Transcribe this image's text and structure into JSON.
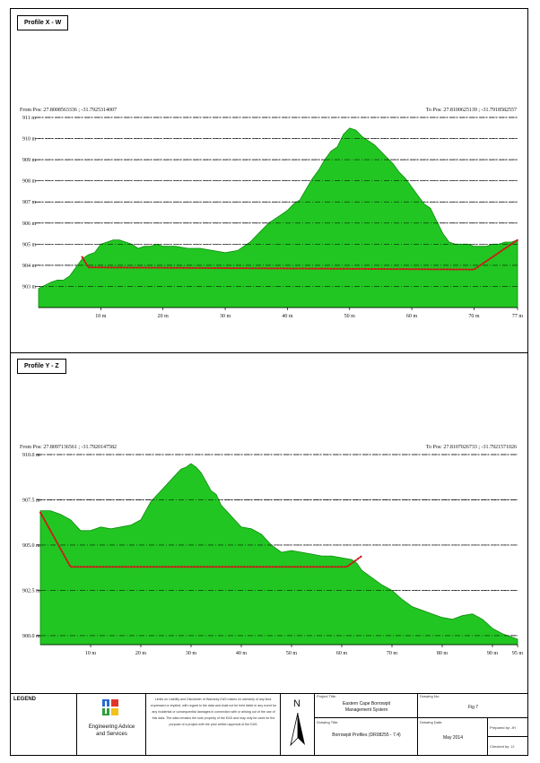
{
  "charts": [
    {
      "panel_title": "Profile X - W",
      "from_pos": "From Pos: 27.8008563336 ; -31.7925314007",
      "to_pos": "To Pos: 27.8100625139 ; -31.7918582557",
      "chart_data": {
        "type": "area",
        "xlabel": "",
        "ylabel": "",
        "xlim": [
          0,
          77
        ],
        "ylim": [
          902,
          911
        ],
        "y_ticks": [
          903,
          904,
          905,
          906,
          907,
          908,
          909,
          910,
          911
        ],
        "y_tick_labels": [
          "903 m",
          "904 m",
          "905 m",
          "906 m",
          "907 m",
          "908 m",
          "909 m",
          "910 m",
          "911 m"
        ],
        "x_ticks": [
          10,
          20,
          30,
          40,
          50,
          60,
          70,
          77
        ],
        "x_tick_labels": [
          "10 m",
          "20 m",
          "30 m",
          "40 m",
          "50 m",
          "60 m",
          "70 m",
          "77 m"
        ],
        "grid": "dash-dot horizontal",
        "terrain": {
          "x": [
            0,
            2,
            3,
            4,
            5,
            6,
            7,
            8,
            9,
            10,
            11,
            12,
            13,
            14,
            15,
            16,
            17,
            18,
            19,
            20,
            22,
            24,
            26,
            28,
            30,
            32,
            34,
            35,
            36,
            37,
            38,
            39,
            40,
            41,
            42,
            43,
            44,
            45,
            46,
            47,
            48,
            49,
            50,
            51,
            52,
            53,
            54,
            55,
            56,
            57,
            58,
            59,
            60,
            61,
            62,
            63,
            64,
            65,
            66,
            67,
            68,
            69,
            70,
            71,
            72,
            73,
            74,
            75,
            76,
            77
          ],
          "y": [
            902.9,
            903.2,
            903.3,
            903.3,
            903.5,
            903.9,
            904.3,
            904.5,
            904.6,
            905.0,
            905.1,
            905.2,
            905.2,
            905.1,
            905.0,
            904.8,
            904.9,
            904.9,
            905.0,
            904.9,
            904.9,
            904.8,
            904.8,
            904.7,
            904.6,
            904.7,
            905.1,
            905.4,
            905.7,
            906.0,
            906.2,
            906.4,
            906.6,
            906.9,
            907.1,
            907.6,
            908.1,
            908.5,
            909.0,
            909.4,
            909.6,
            910.2,
            910.5,
            910.4,
            910.1,
            909.9,
            909.7,
            909.4,
            909.1,
            908.8,
            908.4,
            908.1,
            907.7,
            907.3,
            906.9,
            906.7,
            906.1,
            905.5,
            905.1,
            905.0,
            905.0,
            905.0,
            904.9,
            904.9,
            904.9,
            905.0,
            905.0,
            905.1,
            905.1,
            905.2
          ]
        },
        "design_line": {
          "x": [
            7,
            8,
            70,
            77
          ],
          "y": [
            904.4,
            903.9,
            903.8,
            905.2
          ]
        },
        "colors": {
          "terrain": "#22c622",
          "terrain_edge": "#0f8a0f",
          "design": "#cc1a1a"
        }
      }
    },
    {
      "panel_title": "Profile Y - Z",
      "from_pos": "From Pos: 27.8097136561 ; -31.7920147582",
      "to_pos": "To Pos: 27.8107026733 ; -31.7921571026",
      "chart_data": {
        "type": "area",
        "xlabel": "",
        "ylabel": "",
        "xlim": [
          0,
          95
        ],
        "ylim": [
          899.5,
          910
        ],
        "y_ticks": [
          900,
          902.5,
          905,
          907.5,
          910
        ],
        "y_tick_labels": [
          "900.0 m",
          "902.5 m",
          "905.0 m",
          "907.5 m",
          "910.0 m"
        ],
        "x_ticks": [
          10,
          20,
          30,
          40,
          50,
          60,
          70,
          80,
          90,
          95
        ],
        "x_tick_labels": [
          "10 m",
          "20 m",
          "30 m",
          "40 m",
          "50 m",
          "60 m",
          "70 m",
          "80 m",
          "90 m",
          "95 m"
        ],
        "grid": "dash-dot horizontal",
        "terrain": {
          "x": [
            0,
            2,
            4,
            6,
            8,
            10,
            12,
            14,
            16,
            18,
            20,
            21,
            22,
            23,
            24,
            25,
            26,
            27,
            28,
            29,
            30,
            31,
            32,
            33,
            34,
            35,
            36,
            38,
            40,
            42,
            44,
            46,
            48,
            50,
            52,
            54,
            56,
            58,
            60,
            62,
            63,
            64,
            66,
            68,
            70,
            72,
            74,
            76,
            78,
            80,
            82,
            84,
            86,
            88,
            90,
            92,
            94,
            95
          ],
          "y": [
            906.9,
            906.9,
            906.7,
            906.4,
            905.8,
            905.8,
            906.0,
            905.9,
            906.0,
            906.1,
            906.4,
            906.9,
            907.4,
            907.7,
            908.0,
            908.3,
            908.6,
            908.9,
            909.2,
            909.3,
            909.5,
            909.3,
            909.0,
            908.5,
            908.0,
            907.8,
            907.2,
            906.6,
            906.0,
            905.9,
            905.6,
            905.0,
            904.6,
            904.7,
            904.6,
            904.5,
            904.4,
            904.4,
            904.3,
            904.2,
            904.0,
            903.6,
            903.2,
            902.8,
            902.5,
            902.0,
            901.6,
            901.4,
            901.2,
            901.0,
            900.9,
            901.1,
            901.2,
            900.9,
            900.4,
            900.1,
            899.9,
            899.8
          ]
        },
        "design_line": {
          "x": [
            0,
            6,
            61,
            64
          ],
          "y": [
            906.8,
            903.8,
            903.8,
            904.4
          ]
        },
        "colors": {
          "terrain": "#22c622",
          "terrain_edge": "#0f8a0f",
          "design": "#cc1a1a"
        }
      }
    }
  ],
  "legend": {
    "title": "LEGEND",
    "company_line1": "Engineering Advice",
    "company_line2": "and Services",
    "disclaimer": "Limits on Liability and Disclaimer of Warranty EAS makes no warranty of any kind, expressed or implied, with regard to the data and shall not be held liable in any event for any incidental or consequential damages in connection with or arising out of the use of this data. The data remains the sole property of the EAS and may only be used for the purpose of a project with the prior written approval of the EAS.",
    "north": "N",
    "project_title_label": "Project Title:",
    "project_title_1": "Eastern Cape Borrowpit",
    "project_title_2": "Management System",
    "drawing_title_label": "Drawing Title:",
    "drawing_title": "Borrowpit Profiles (DR08255 - 7.4)",
    "drawing_no_label": "Drawing No:",
    "drawing_no": "Fig 7",
    "drawing_date_label": "Drawing Date:",
    "drawing_date": "May 2014",
    "prepared_by": "Prepared by: JH",
    "checked_by": "Checked by: JJ"
  }
}
